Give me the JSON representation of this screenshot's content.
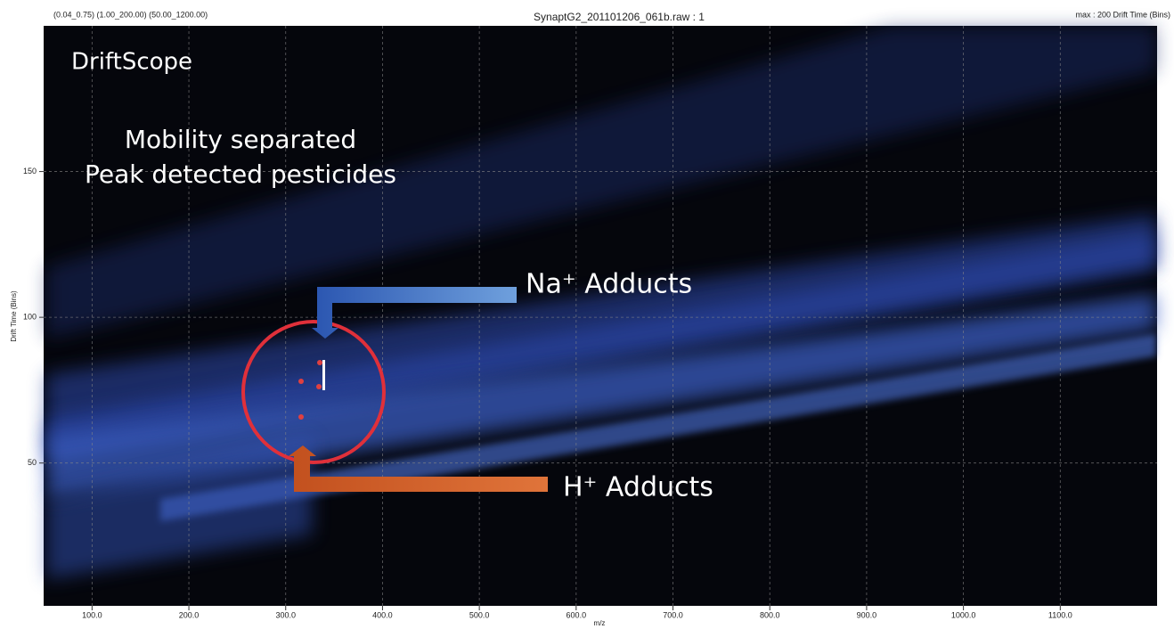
{
  "chart_data": {
    "type": "heatmap",
    "ranges_label": "(0.04_0.75) (1.00_200.00) (50.00_1200.00)",
    "title": "SynaptG2_201101206_061b.raw : 1",
    "max_label": "max : 200 Drift Time (Bins)",
    "x_label": "m/z",
    "y_label": "Drift Time (Bins)",
    "xlim": [
      50,
      1200
    ],
    "ylim": [
      1,
      200
    ],
    "xticks": [
      {
        "value": 100,
        "label": "100.0"
      },
      {
        "value": 200,
        "label": "200.0"
      },
      {
        "value": 300,
        "label": "300.0"
      },
      {
        "value": 400,
        "label": "400.0"
      },
      {
        "value": 500,
        "label": "500.0"
      },
      {
        "value": 600,
        "label": "600.0"
      },
      {
        "value": 700,
        "label": "700.0"
      },
      {
        "value": 800,
        "label": "800.0"
      },
      {
        "value": 900,
        "label": "900.0"
      },
      {
        "value": 1000,
        "label": "1000.0"
      },
      {
        "value": 1100,
        "label": "1100.0"
      }
    ],
    "yticks": [
      50,
      100,
      150
    ],
    "grid": true,
    "annotations": [
      "DriftScope",
      "Mobility separated",
      "Peak detected pesticides",
      "Na⁺  Adducts",
      "H⁺  Adducts"
    ]
  }
}
